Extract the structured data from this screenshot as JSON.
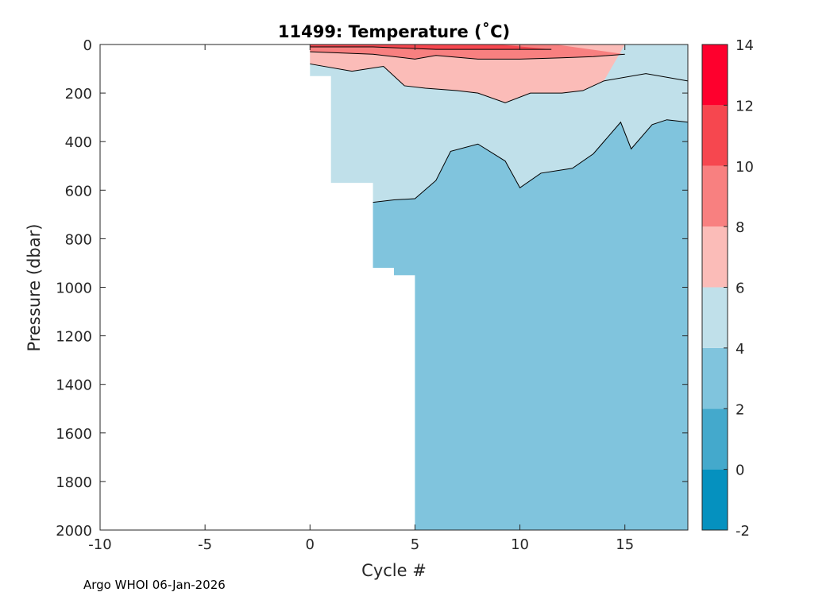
{
  "chart_data": {
    "type": "heatmap",
    "subtype": "filled-contour",
    "title": "11499:  Temperature (˚C)",
    "xlabel": "Cycle #",
    "ylabel": "Pressure (dbar)",
    "xlim": [
      -10,
      18
    ],
    "ylim": [
      0,
      2000
    ],
    "y_reversed": true,
    "xticks": [
      -10,
      -5,
      0,
      5,
      10,
      15
    ],
    "yticks": [
      0,
      200,
      400,
      600,
      800,
      1000,
      1200,
      1400,
      1600,
      1800,
      2000
    ],
    "xtick_labels": [
      "-10",
      "-5",
      "0",
      "5",
      "10",
      "15"
    ],
    "ytick_labels": [
      "0",
      "200",
      "400",
      "600",
      "800",
      "1000",
      "1200",
      "1400",
      "1600",
      "1800",
      "2000"
    ],
    "colorbar": {
      "levels": [
        -2,
        0,
        2,
        4,
        6,
        8,
        10,
        12,
        14
      ],
      "tick_labels": [
        "-2",
        "0",
        "2",
        "4",
        "6",
        "8",
        "10",
        "12",
        "14"
      ],
      "colors": [
        "#0591bf",
        "#44a9cc",
        "#80c4dd",
        "#c0e0ea",
        "#fbbcb8",
        "#f88080",
        "#f6474f",
        "#fe002d"
      ]
    },
    "band_colors": {
      "2-4": "#80c4dd",
      "4-6": "#c0e0ea",
      "6-8": "#fbbcb8",
      "8-10": "#f88080",
      "10-12": "#f6474f"
    },
    "data_extent": [
      {
        "cycle_from": 0,
        "cycle_to": 1,
        "max_pressure": 130
      },
      {
        "cycle_from": 1,
        "cycle_to": 3,
        "max_pressure": 570
      },
      {
        "cycle_from": 3,
        "cycle_to": 4,
        "max_pressure": 920
      },
      {
        "cycle_from": 4,
        "cycle_to": 5,
        "max_pressure": 950
      },
      {
        "cycle_from": 5,
        "cycle_to": 18,
        "max_pressure": 2000
      }
    ],
    "isotherm_4C_top_of_2to4_band": [
      [
        3,
        650
      ],
      [
        4,
        640
      ],
      [
        5,
        635
      ],
      [
        6,
        560
      ],
      [
        6.7,
        440
      ],
      [
        8,
        410
      ],
      [
        9.3,
        480
      ],
      [
        10,
        590
      ],
      [
        11,
        530
      ],
      [
        12.5,
        510
      ],
      [
        13.5,
        450
      ],
      [
        14.8,
        320
      ],
      [
        15.3,
        430
      ],
      [
        16.3,
        330
      ],
      [
        17,
        310
      ],
      [
        18,
        320
      ]
    ],
    "isotherm_6C_top_of_4to6_band": [
      [
        0,
        80
      ],
      [
        2,
        110
      ],
      [
        3.5,
        90
      ],
      [
        4.5,
        170
      ],
      [
        5.5,
        180
      ],
      [
        7,
        190
      ],
      [
        8,
        200
      ],
      [
        9.3,
        240
      ],
      [
        10.5,
        200
      ],
      [
        12,
        200
      ],
      [
        13,
        190
      ],
      [
        14,
        150
      ],
      [
        16,
        120
      ],
      [
        18,
        150
      ]
    ],
    "isotherm_8C_top_of_6to8_band": [
      [
        0,
        30
      ],
      [
        3,
        40
      ],
      [
        5,
        60
      ],
      [
        6,
        45
      ],
      [
        8,
        60
      ],
      [
        10,
        60
      ],
      [
        12,
        55
      ],
      [
        13.5,
        50
      ],
      [
        15,
        40
      ]
    ],
    "isotherm_10C_top_of_8to10_band": [
      [
        0,
        10
      ],
      [
        3,
        10
      ],
      [
        6,
        20
      ],
      [
        9,
        20
      ],
      [
        11.5,
        20
      ]
    ],
    "annotations": [
      "Argo WHOI 06-Jan-2026"
    ]
  }
}
